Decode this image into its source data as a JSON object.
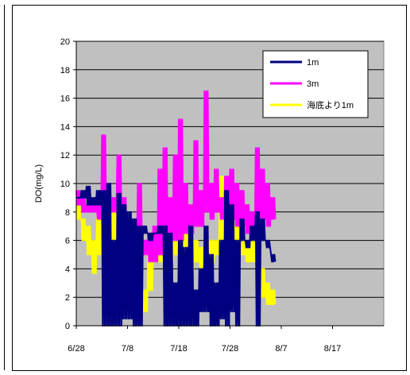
{
  "chart_data": {
    "type": "line",
    "title": "",
    "xlabel": "",
    "ylabel": "DO(mg/L)",
    "ylim": [
      0,
      20
    ],
    "yticks": [
      0,
      2,
      4,
      6,
      8,
      10,
      12,
      14,
      16,
      18,
      20
    ],
    "xlim": [
      "6/28",
      "8/27"
    ],
    "xticks": [
      "6/28",
      "7/8",
      "7/18",
      "7/28",
      "8/7",
      "8/17"
    ],
    "grid": true,
    "legend_position": "top-right",
    "plot_background": "#c0c0c0",
    "series": [
      {
        "name": "1m",
        "color": "#000080",
        "x": [
          "6/28",
          "6/29",
          "6/30",
          "7/1",
          "7/2",
          "7/3",
          "7/4",
          "7/5",
          "7/6",
          "7/7",
          "7/8",
          "7/9",
          "7/10",
          "7/11",
          "7/12",
          "7/13",
          "7/14",
          "7/15",
          "7/16",
          "7/17",
          "7/18",
          "7/19",
          "7/20",
          "7/21",
          "7/22",
          "7/23",
          "7/24",
          "7/25",
          "7/26",
          "7/27",
          "7/28",
          "7/29",
          "7/30",
          "7/31",
          "8/1",
          "8/2",
          "8/3",
          "8/4",
          "8/5"
        ],
        "y": [
          9,
          9.5,
          9.8,
          9,
          9.5,
          9.5,
          10,
          6,
          9.3,
          8.5,
          8,
          7.5,
          7,
          7,
          6.5,
          6.5,
          7,
          7,
          6.5,
          3,
          6,
          5.5,
          7,
          2.5,
          4,
          7,
          5,
          3,
          6,
          9.5,
          8.5,
          6,
          7.5,
          6,
          7,
          8,
          7.5,
          6,
          5
        ],
        "y_low": [
          9,
          9,
          8.5,
          8.5,
          8.5,
          0,
          0,
          0,
          0,
          0.5,
          0.5,
          0,
          0,
          6.5,
          6,
          6.5,
          6.5,
          0,
          0,
          0,
          0,
          0,
          0,
          0,
          1,
          1,
          0,
          0,
          0.5,
          0,
          1,
          0,
          6,
          5.5,
          6,
          0,
          6,
          5.5,
          4.5
        ]
      },
      {
        "name": "3m",
        "color": "#ff00ff",
        "x": [
          "6/28",
          "6/29",
          "6/30",
          "7/1",
          "7/2",
          "7/3",
          "7/4",
          "7/5",
          "7/6",
          "7/7",
          "7/8",
          "7/9",
          "7/10",
          "7/11",
          "7/12",
          "7/13",
          "7/14",
          "7/15",
          "7/16",
          "7/17",
          "7/18",
          "7/19",
          "7/20",
          "7/21",
          "7/22",
          "7/23",
          "7/24",
          "7/25",
          "7/26",
          "7/27",
          "7/28",
          "7/29",
          "7/30",
          "7/31",
          "8/1",
          "8/2",
          "8/3",
          "8/4",
          "8/5"
        ],
        "y": [
          9.5,
          9,
          8.5,
          8.5,
          8.5,
          13.4,
          10,
          9,
          12,
          9,
          7.5,
          7,
          10,
          6,
          6.5,
          7,
          11,
          12.5,
          9,
          12,
          14.5,
          10,
          8.5,
          13,
          9.5,
          16.5,
          10,
          11,
          9,
          10.5,
          11,
          10,
          9.5,
          8.5,
          8,
          12.5,
          11,
          10,
          9
        ],
        "y_low": [
          8.5,
          8,
          8,
          8,
          7.5,
          8.5,
          8,
          8,
          7,
          6.5,
          6,
          6,
          5.5,
          5,
          4.5,
          4.5,
          5,
          5.5,
          6,
          6,
          6,
          6.5,
          6.5,
          7,
          7,
          8,
          7.5,
          8,
          7.5,
          8,
          7.5,
          7,
          7,
          6.5,
          6.5,
          7.5,
          7.5,
          7,
          7.5
        ]
      },
      {
        "name": "海底より1m",
        "color": "#ffff00",
        "x": [
          "6/28",
          "6/29",
          "6/30",
          "7/1",
          "7/2",
          "7/3",
          "7/4",
          "7/5",
          "7/6",
          "7/7",
          "7/8",
          "7/9",
          "7/10",
          "7/11",
          "7/12",
          "7/13",
          "7/14",
          "7/15",
          "7/16",
          "7/17",
          "7/18",
          "7/19",
          "7/20",
          "7/21",
          "7/22",
          "7/23",
          "7/24",
          "7/25",
          "7/26",
          "7/27",
          "7/28",
          "7/29",
          "7/30",
          "7/31",
          "8/1",
          "8/2",
          "8/3",
          "8/4",
          "8/5"
        ],
        "y": [
          8.5,
          7.5,
          7,
          6,
          7.5,
          7,
          9.5,
          8,
          8,
          7.5,
          4,
          2,
          1.5,
          2.5,
          5,
          5.5,
          6,
          6,
          5.5,
          6.5,
          11,
          8,
          5.5,
          6,
          5.5,
          5.5,
          6,
          6,
          10.5,
          8.5,
          8,
          7,
          6.5,
          6,
          6.5,
          6,
          4,
          3,
          2.5
        ],
        "y_low": [
          7.5,
          6,
          5,
          3.7,
          5,
          4.5,
          6,
          6,
          5.5,
          3,
          2,
          0.8,
          0.5,
          1,
          2.5,
          4.5,
          4.5,
          4.5,
          4.5,
          5,
          5,
          4.5,
          4,
          4.5,
          4,
          4,
          4.5,
          5,
          6,
          6,
          5.5,
          5,
          5,
          4.5,
          4.5,
          4,
          2,
          1.5,
          1.5
        ]
      }
    ]
  }
}
